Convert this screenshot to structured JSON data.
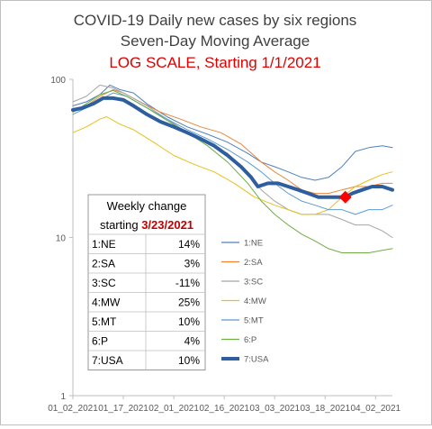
{
  "chart_data": {
    "type": "line",
    "title": "COVID-19 Daily new cases by six regions",
    "subtitle": "Seven-Day Moving Average",
    "note": "LOG SCALE, Starting 1/1/2021",
    "yscale": "log",
    "ylim": [
      1,
      100
    ],
    "yticks": [
      "1",
      "10",
      "100"
    ],
    "xticks": [
      "01_02_2021",
      "01_17_2021",
      "02_01_2021",
      "02_16_2021",
      "03_03_2021",
      "03_18_2021",
      "04_02_2021"
    ],
    "x_days": [
      0,
      15,
      30,
      45,
      60,
      75,
      90
    ],
    "xlim_days": [
      0,
      95
    ],
    "series": [
      {
        "name": "1:NE",
        "color": "#4f81bd",
        "width": 1,
        "points": [
          [
            0,
            68
          ],
          [
            4,
            72
          ],
          [
            8,
            80
          ],
          [
            11,
            92
          ],
          [
            14,
            86
          ],
          [
            18,
            82
          ],
          [
            22,
            70
          ],
          [
            28,
            58
          ],
          [
            34,
            50
          ],
          [
            40,
            45
          ],
          [
            46,
            40
          ],
          [
            52,
            34
          ],
          [
            56,
            30
          ],
          [
            60,
            28
          ],
          [
            64,
            26
          ],
          [
            68,
            24
          ],
          [
            72,
            23
          ],
          [
            76,
            24
          ],
          [
            80,
            28
          ],
          [
            84,
            35
          ],
          [
            88,
            37
          ],
          [
            92,
            38
          ],
          [
            95,
            37
          ]
        ]
      },
      {
        "name": "2:SA",
        "color": "#e8873a",
        "width": 1,
        "points": [
          [
            0,
            62
          ],
          [
            4,
            68
          ],
          [
            8,
            78
          ],
          [
            12,
            86
          ],
          [
            15,
            82
          ],
          [
            20,
            72
          ],
          [
            26,
            62
          ],
          [
            32,
            56
          ],
          [
            38,
            50
          ],
          [
            44,
            46
          ],
          [
            50,
            39
          ],
          [
            56,
            30
          ],
          [
            60,
            26
          ],
          [
            64,
            23
          ],
          [
            68,
            20
          ],
          [
            72,
            19
          ],
          [
            76,
            19
          ],
          [
            80,
            20
          ],
          [
            84,
            21
          ],
          [
            88,
            21
          ],
          [
            92,
            22
          ],
          [
            95,
            22
          ]
        ]
      },
      {
        "name": "3:SC",
        "color": "#a5a5a5",
        "width": 1,
        "points": [
          [
            0,
            72
          ],
          [
            4,
            78
          ],
          [
            8,
            92
          ],
          [
            12,
            88
          ],
          [
            16,
            80
          ],
          [
            22,
            68
          ],
          [
            28,
            56
          ],
          [
            34,
            46
          ],
          [
            40,
            40
          ],
          [
            46,
            34
          ],
          [
            52,
            26
          ],
          [
            56,
            20
          ],
          [
            60,
            17
          ],
          [
            64,
            15
          ],
          [
            68,
            14
          ],
          [
            72,
            14
          ],
          [
            76,
            14
          ],
          [
            80,
            13
          ],
          [
            84,
            12
          ],
          [
            88,
            12
          ],
          [
            92,
            11
          ],
          [
            95,
            10
          ]
        ]
      },
      {
        "name": "4:MW",
        "color": "#e6c11c",
        "width": 1,
        "points": [
          [
            0,
            46
          ],
          [
            4,
            50
          ],
          [
            8,
            56
          ],
          [
            10,
            58
          ],
          [
            14,
            52
          ],
          [
            18,
            48
          ],
          [
            24,
            40
          ],
          [
            30,
            33
          ],
          [
            36,
            29
          ],
          [
            42,
            26
          ],
          [
            48,
            22
          ],
          [
            54,
            18
          ],
          [
            60,
            16
          ],
          [
            64,
            15
          ],
          [
            68,
            14
          ],
          [
            72,
            14
          ],
          [
            76,
            15
          ],
          [
            80,
            18
          ],
          [
            84,
            21
          ],
          [
            88,
            23
          ],
          [
            92,
            25
          ],
          [
            95,
            26
          ]
        ]
      },
      {
        "name": "5:MT",
        "color": "#5b9bd5",
        "width": 1,
        "points": [
          [
            0,
            60
          ],
          [
            4,
            66
          ],
          [
            8,
            74
          ],
          [
            12,
            82
          ],
          [
            16,
            78
          ],
          [
            22,
            66
          ],
          [
            28,
            56
          ],
          [
            34,
            48
          ],
          [
            40,
            42
          ],
          [
            46,
            36
          ],
          [
            52,
            30
          ],
          [
            56,
            26
          ],
          [
            60,
            22
          ],
          [
            64,
            19
          ],
          [
            68,
            17
          ],
          [
            72,
            16
          ],
          [
            76,
            15
          ],
          [
            80,
            15
          ],
          [
            84,
            14
          ],
          [
            88,
            15
          ],
          [
            92,
            15
          ],
          [
            95,
            16
          ]
        ]
      },
      {
        "name": "6:P",
        "color": "#70ad47",
        "width": 1,
        "points": [
          [
            0,
            62
          ],
          [
            4,
            70
          ],
          [
            8,
            80
          ],
          [
            12,
            85
          ],
          [
            16,
            78
          ],
          [
            22,
            66
          ],
          [
            28,
            55
          ],
          [
            34,
            46
          ],
          [
            40,
            38
          ],
          [
            46,
            30
          ],
          [
            52,
            22
          ],
          [
            56,
            17
          ],
          [
            60,
            14
          ],
          [
            64,
            12
          ],
          [
            68,
            10.5
          ],
          [
            72,
            9.5
          ],
          [
            76,
            8.5
          ],
          [
            80,
            8
          ],
          [
            84,
            8
          ],
          [
            88,
            8
          ],
          [
            92,
            8.3
          ],
          [
            95,
            8.5
          ]
        ]
      },
      {
        "name": "7:USA",
        "color": "#2e5e9e",
        "width": 4,
        "points": [
          [
            0,
            64
          ],
          [
            3,
            66
          ],
          [
            6,
            70
          ],
          [
            9,
            76
          ],
          [
            12,
            76
          ],
          [
            15,
            74
          ],
          [
            18,
            68
          ],
          [
            22,
            60
          ],
          [
            26,
            54
          ],
          [
            30,
            50
          ],
          [
            34,
            46
          ],
          [
            38,
            42
          ],
          [
            42,
            38
          ],
          [
            46,
            33
          ],
          [
            50,
            28
          ],
          [
            53,
            24
          ],
          [
            55,
            21
          ],
          [
            58,
            22
          ],
          [
            61,
            22
          ],
          [
            64,
            21
          ],
          [
            67,
            20
          ],
          [
            70,
            19
          ],
          [
            73,
            18
          ],
          [
            76,
            18
          ],
          [
            79,
            18
          ],
          [
            81,
            18
          ],
          [
            83,
            19
          ],
          [
            86,
            20
          ],
          [
            89,
            21
          ],
          [
            92,
            21
          ],
          [
            95,
            20
          ]
        ]
      }
    ],
    "marker": {
      "day": 81,
      "value": 18,
      "color": "#ff0000",
      "shape": "diamond"
    },
    "table": {
      "title_line1": "Weekly change",
      "title_line2": "starting",
      "title_date": "3/23/2021",
      "rows": [
        {
          "region": "1:NE",
          "change": "14%"
        },
        {
          "region": "2:SA",
          "change": "3%"
        },
        {
          "region": "3:SC",
          "change": "-11%"
        },
        {
          "region": "4:MW",
          "change": "25%"
        },
        {
          "region": "5:MT",
          "change": "10%"
        },
        {
          "region": "6:P",
          "change": "4%"
        },
        {
          "region": "7:USA",
          "change": "10%"
        }
      ]
    }
  }
}
